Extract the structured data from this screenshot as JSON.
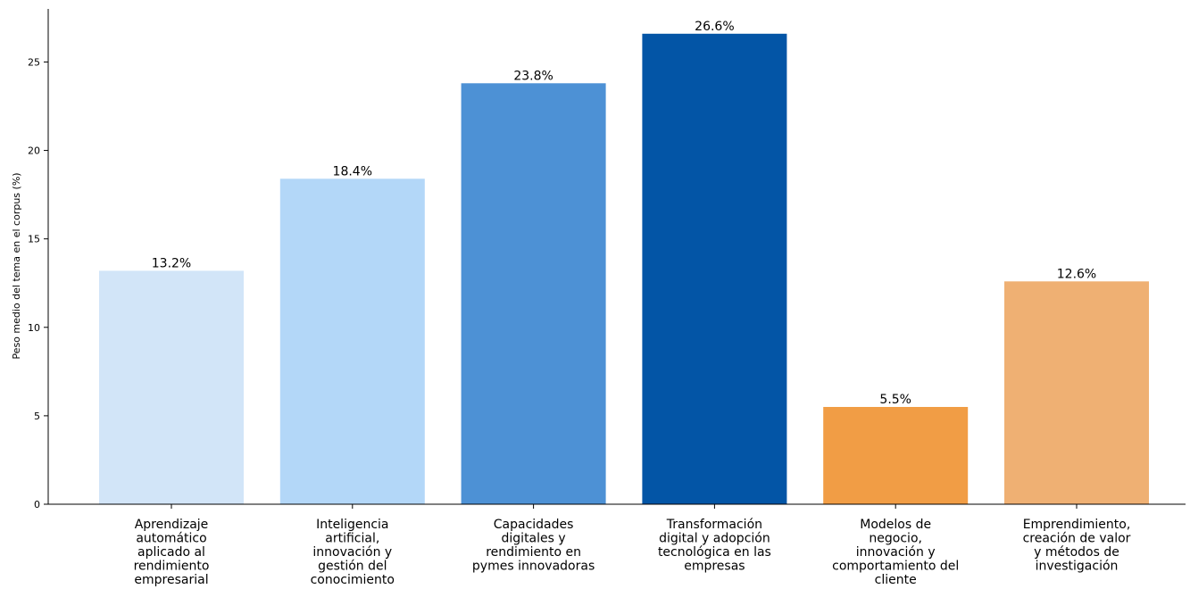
{
  "chart_data": {
    "type": "bar",
    "title": "",
    "xlabel": "",
    "ylabel": "Peso medio del tema en el corpus (%)",
    "ylim": [
      0,
      28
    ],
    "yticks": [
      0,
      5,
      10,
      15,
      20,
      25
    ],
    "grid": false,
    "legend": "none",
    "categories": [
      [
        "Aprendizaje",
        "automático",
        "aplicado al",
        "rendimiento",
        "empresarial"
      ],
      [
        "Inteligencia",
        "artificial,",
        "innovación y",
        "gestión del",
        "conocimiento"
      ],
      [
        "Capacidades",
        "digitales y",
        "rendimiento en",
        "pymes innovadoras"
      ],
      [
        "Transformación",
        "digital y adopción",
        "tecnológica en las",
        "empresas"
      ],
      [
        "Modelos de",
        "negocio,",
        "innovación y",
        "comportamiento del",
        "cliente"
      ],
      [
        "Emprendimiento,",
        "creación de valor",
        "y métodos de",
        "investigación"
      ]
    ],
    "values": [
      13.2,
      18.4,
      23.8,
      26.6,
      5.5,
      12.6
    ],
    "data_labels": [
      "13.2%",
      "18.4%",
      "23.8%",
      "26.6%",
      "5.5%",
      "12.6%"
    ],
    "colors": [
      "#d2e5f8",
      "#b3d7f8",
      "#4d91d5",
      "#0355a6",
      "#f19d45",
      "#efb073"
    ]
  }
}
